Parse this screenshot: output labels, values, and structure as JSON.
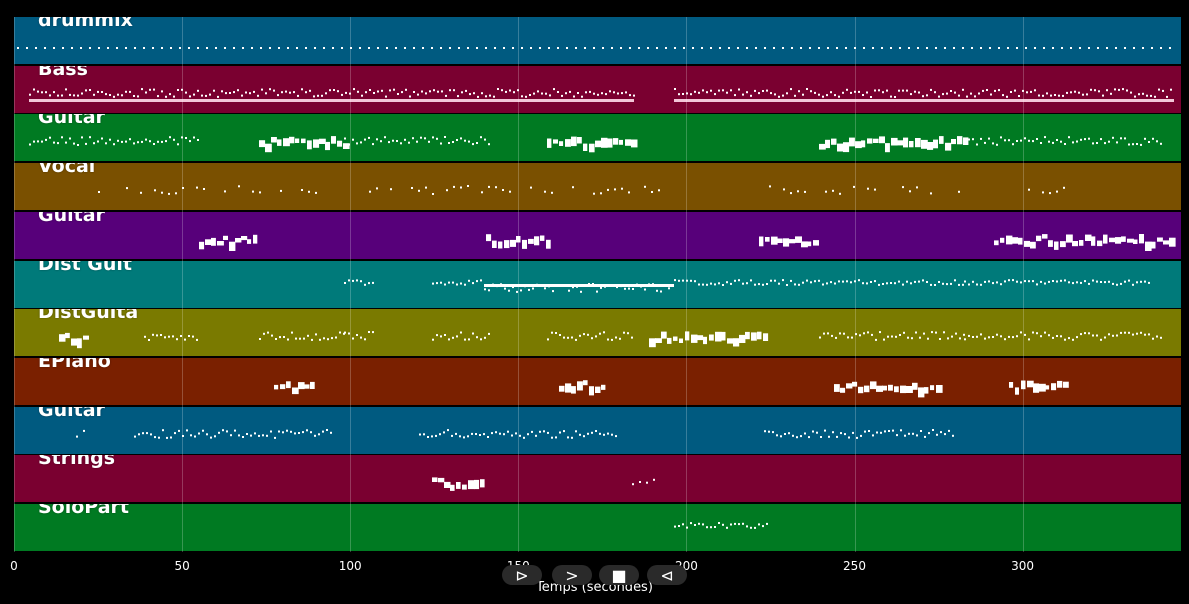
{
  "tracks": [
    {
      "name": "drummix",
      "color": "#005a80"
    },
    {
      "name": "Bass",
      "color": "#7a0030"
    },
    {
      "name": "Guitar",
      "color": "#007a22"
    },
    {
      "name": "Vocal",
      "color": "#7a5000"
    },
    {
      "name": "Guitar",
      "color": "#57007a"
    },
    {
      "name": "Dist Guit",
      "color": "#007a7a"
    },
    {
      "name": "DistGuita",
      "color": "#7a7a00"
    },
    {
      "name": "EPiano",
      "color": "#7a2000"
    },
    {
      "name": "Guitar",
      "color": "#005a80"
    },
    {
      "name": "Strings",
      "color": "#7a0030"
    },
    {
      "name": "SoloPart",
      "color": "#007a22"
    }
  ],
  "axis": {
    "xlabel": "Temps (secondes)",
    "ticks": [
      "0",
      "50",
      "100",
      "150",
      "200",
      "250",
      "300"
    ],
    "range_seconds": [
      0,
      347
    ]
  },
  "controls": [
    {
      "name": "play-icon",
      "glyph": "⊳"
    },
    {
      "name": "forward-icon",
      "glyph": ">"
    },
    {
      "name": "stop-icon",
      "glyph": "■"
    },
    {
      "name": "back-icon",
      "glyph": "⊲"
    }
  ]
}
